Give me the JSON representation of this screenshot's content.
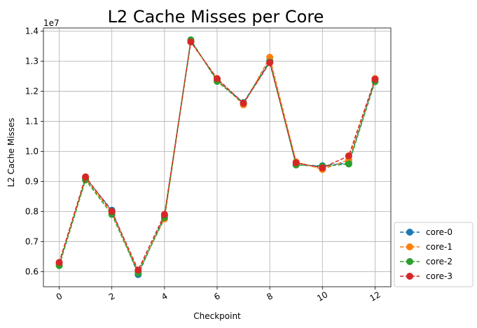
{
  "chart_data": {
    "type": "line",
    "title": "L2 Cache Misses per Core",
    "xlabel": "Checkpoint",
    "ylabel": "L2 Cache Misses",
    "y_offset_label": "1e7",
    "y_scale": 10000000,
    "xlim": [
      -0.6,
      12.6
    ],
    "ylim": [
      0.5495,
      1.4105
    ],
    "x_ticks": [
      0,
      2,
      4,
      6,
      8,
      10,
      12
    ],
    "x_tick_labels": [
      "0",
      "2",
      "4",
      "6",
      "8",
      "10",
      "12"
    ],
    "y_ticks": [
      0.6,
      0.7,
      0.8,
      0.9,
      1.0,
      1.1,
      1.2,
      1.3,
      1.4
    ],
    "y_tick_labels": [
      "0.6",
      "0.7",
      "0.8",
      "0.9",
      "1.0",
      "1.1",
      "1.2",
      "1.3",
      "1.4"
    ],
    "grid": true,
    "legend_position": "outside-bottom-right",
    "x": [
      0,
      1,
      2,
      3,
      4,
      5,
      6,
      7,
      8,
      9,
      10,
      11,
      12
    ],
    "series": [
      {
        "name": "core-0",
        "color": "#1f77b4",
        "values": [
          0.63,
          0.912,
          0.804,
          0.59,
          0.785,
          1.368,
          1.237,
          1.162,
          1.302,
          0.955,
          0.952,
          0.962,
          1.238
        ]
      },
      {
        "name": "core-1",
        "color": "#ff7f0e",
        "values": [
          0.625,
          0.91,
          0.796,
          0.6,
          0.775,
          1.365,
          1.24,
          1.155,
          1.313,
          0.965,
          0.94,
          0.972,
          1.242
        ]
      },
      {
        "name": "core-2",
        "color": "#2ca02c",
        "values": [
          0.62,
          0.905,
          0.79,
          0.595,
          0.78,
          1.371,
          1.233,
          1.16,
          1.297,
          0.955,
          0.95,
          0.958,
          1.232
        ]
      },
      {
        "name": "core-3",
        "color": "#d62728",
        "values": [
          0.63,
          0.915,
          0.8,
          0.605,
          0.79,
          1.364,
          1.242,
          1.16,
          1.295,
          0.962,
          0.945,
          0.985,
          1.24
        ]
      }
    ]
  }
}
